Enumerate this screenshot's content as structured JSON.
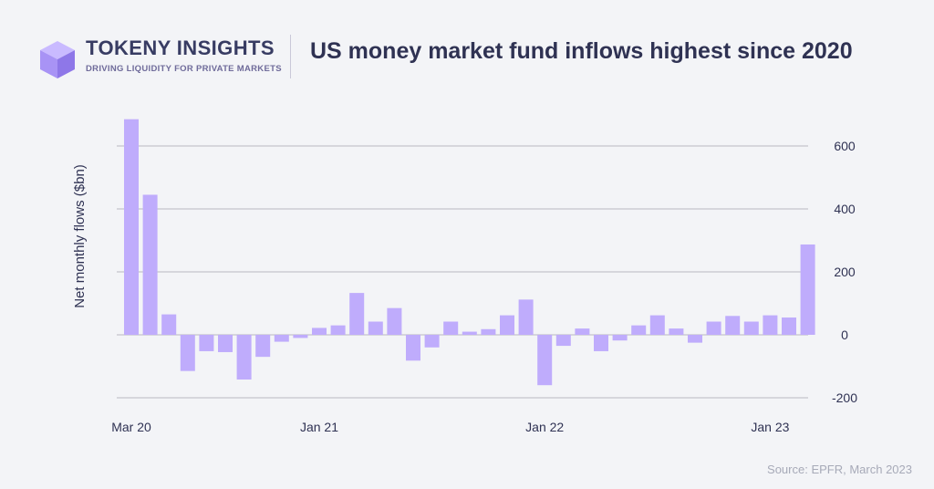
{
  "brand": {
    "name": "TOKENY INSIGHTS",
    "tagline": "DRIVING LIQUIDITY FOR PRIVATE MARKETS"
  },
  "title": "US money market fund inflows highest since 2020",
  "source": "Source: EPFR, March 2023",
  "colors": {
    "bar": "#bfacfc",
    "grid": "#b9b9c0",
    "text": "#2f3253",
    "logo_light": "#c9baff",
    "logo_mid": "#a893f5",
    "logo_dark": "#8e77e8"
  },
  "chart_data": {
    "type": "bar",
    "ylabel": "Net monthly flows ($bn)",
    "y_axis_position": "right",
    "ylim": [
      -200,
      650
    ],
    "yticks": [
      -200,
      0,
      200,
      400,
      600
    ],
    "grid": true,
    "x_tick_labels": [
      {
        "index": 0,
        "label": "Mar 20"
      },
      {
        "index": 10,
        "label": "Jan 21"
      },
      {
        "index": 22,
        "label": "Jan 22"
      },
      {
        "index": 34,
        "label": "Jan 23"
      }
    ],
    "categories": [
      "Mar 20",
      "Apr 20",
      "May 20",
      "Jun 20",
      "Jul 20",
      "Aug 20",
      "Sep 20",
      "Oct 20",
      "Nov 20",
      "Dec 20",
      "Jan 21",
      "Feb 21",
      "Mar 21",
      "Apr 21",
      "May 21",
      "Jun 21",
      "Jul 21",
      "Aug 21",
      "Sep 21",
      "Oct 21",
      "Nov 21",
      "Dec 21",
      "Jan 22",
      "Feb 22",
      "Mar 22",
      "Apr 22",
      "May 22",
      "Jun 22",
      "Jul 22",
      "Aug 22",
      "Sep 22",
      "Oct 22",
      "Nov 22",
      "Dec 22",
      "Jan 23",
      "Feb 23",
      "Mar 23"
    ],
    "values": [
      685,
      445,
      65,
      -115,
      -52,
      -55,
      -142,
      -70,
      -22,
      -10,
      22,
      30,
      133,
      42,
      85,
      -82,
      -40,
      42,
      10,
      18,
      62,
      112,
      -160,
      -35,
      20,
      -52,
      -18,
      30,
      62,
      20,
      -25,
      42,
      60,
      42,
      62,
      55,
      287
    ]
  }
}
